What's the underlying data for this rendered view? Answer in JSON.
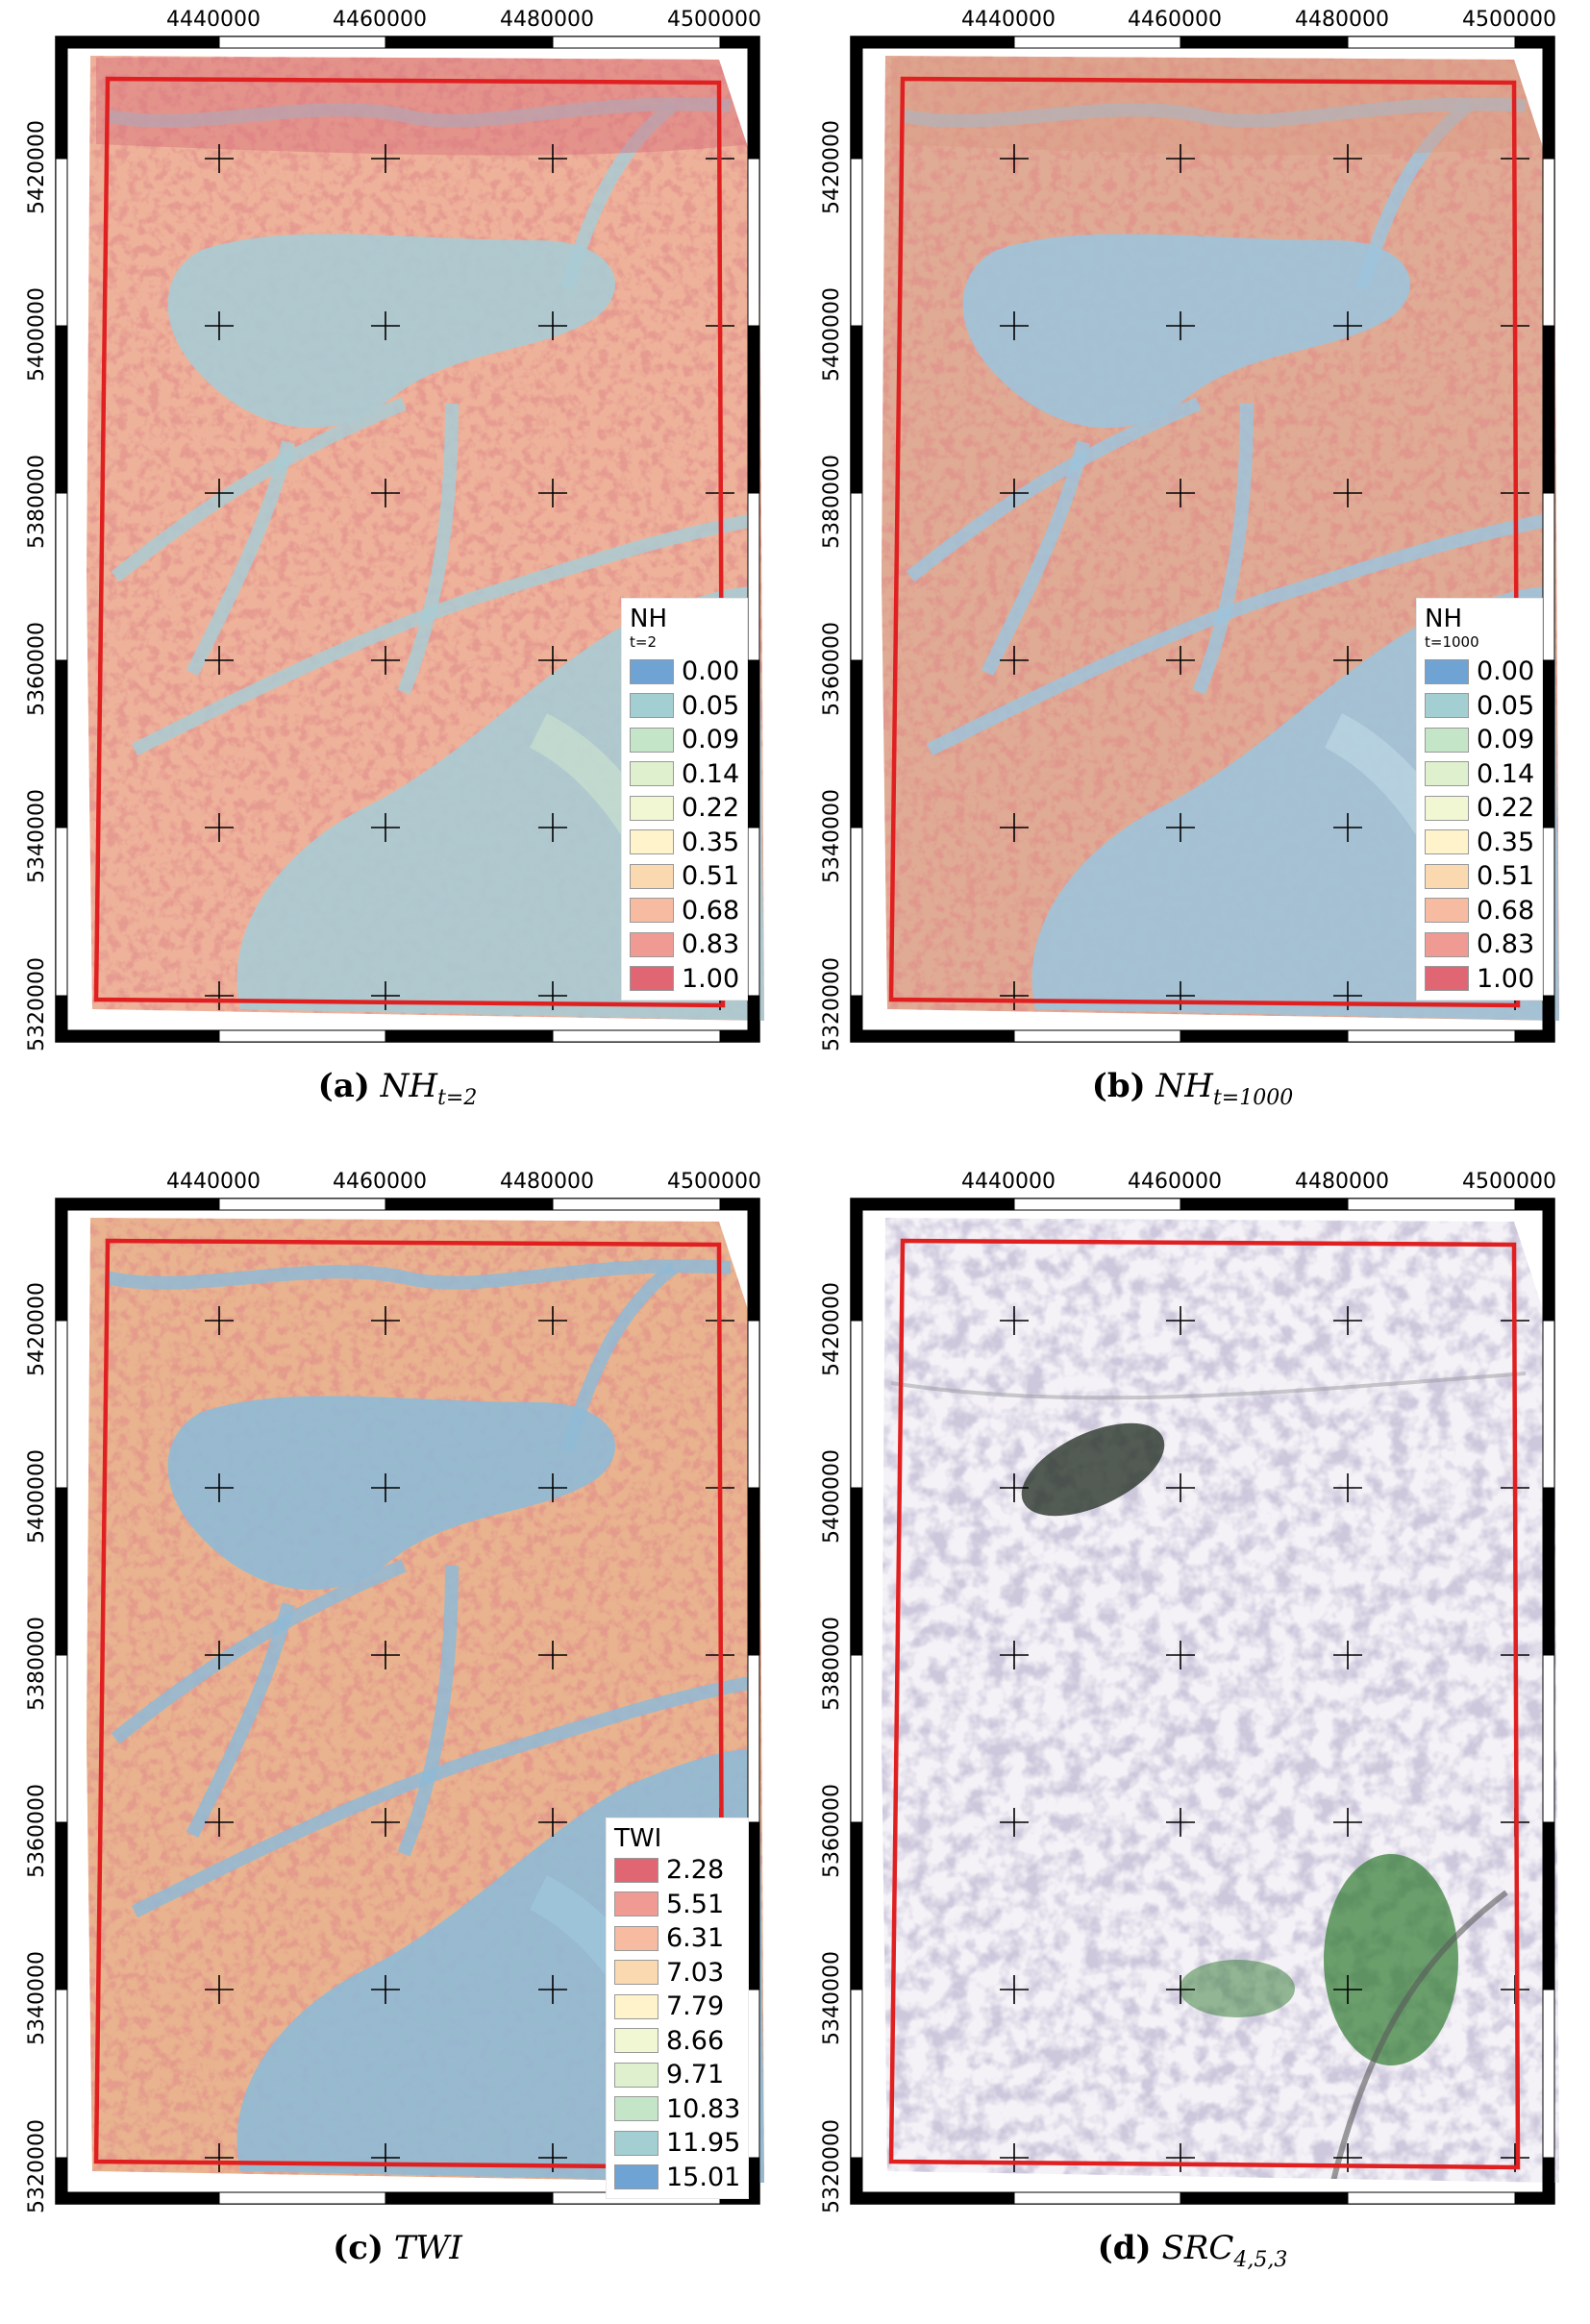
{
  "axes": {
    "x_ticks": [
      "4440000",
      "4460000",
      "4480000",
      "4500000"
    ],
    "y_ticks": [
      "5420000",
      "5400000",
      "5380000",
      "5360000",
      "5340000",
      "5320000"
    ]
  },
  "panels": [
    {
      "id": "a",
      "caption_letter": "(a)",
      "caption_main": "NH",
      "caption_sub": "t=2",
      "legend": {
        "title": "NH",
        "subtitle": "t=2",
        "items": [
          {
            "value": "0.00",
            "color": "#6fa3d3"
          },
          {
            "value": "0.05",
            "color": "#a3cfd2"
          },
          {
            "value": "0.09",
            "color": "#c5e5c8"
          },
          {
            "value": "0.14",
            "color": "#dff0cf"
          },
          {
            "value": "0.22",
            "color": "#f2f7d3"
          },
          {
            "value": "0.35",
            "color": "#fff3cc"
          },
          {
            "value": "0.51",
            "color": "#fbd9b0"
          },
          {
            "value": "0.68",
            "color": "#f6bba0"
          },
          {
            "value": "0.83",
            "color": "#ef9b94"
          },
          {
            "value": "1.00",
            "color": "#e06674"
          }
        ]
      },
      "map_style": "nh2"
    },
    {
      "id": "b",
      "caption_letter": "(b)",
      "caption_main": "NH",
      "caption_sub": "t=1000",
      "legend": {
        "title": "NH",
        "subtitle": "t=1000",
        "items": [
          {
            "value": "0.00",
            "color": "#6fa3d3"
          },
          {
            "value": "0.05",
            "color": "#a3cfd2"
          },
          {
            "value": "0.09",
            "color": "#c5e5c8"
          },
          {
            "value": "0.14",
            "color": "#dff0cf"
          },
          {
            "value": "0.22",
            "color": "#f2f7d3"
          },
          {
            "value": "0.35",
            "color": "#fff3cc"
          },
          {
            "value": "0.51",
            "color": "#fbd9b0"
          },
          {
            "value": "0.68",
            "color": "#f6bba0"
          },
          {
            "value": "0.83",
            "color": "#ef9b94"
          },
          {
            "value": "1.00",
            "color": "#e06674"
          }
        ]
      },
      "map_style": "nh1000"
    },
    {
      "id": "c",
      "caption_letter": "(c)",
      "caption_main": "TWI",
      "caption_sub": "",
      "legend": {
        "title": "TWI",
        "subtitle": "",
        "items": [
          {
            "value": "2.28",
            "color": "#e06674"
          },
          {
            "value": "5.51",
            "color": "#ef9b94"
          },
          {
            "value": "6.31",
            "color": "#f6bba0"
          },
          {
            "value": "7.03",
            "color": "#fbd9b0"
          },
          {
            "value": "7.79",
            "color": "#fff3cc"
          },
          {
            "value": "8.66",
            "color": "#f2f7d3"
          },
          {
            "value": "9.71",
            "color": "#dff0cf"
          },
          {
            "value": "10.83",
            "color": "#c5e5c8"
          },
          {
            "value": "11.95",
            "color": "#a3cfd2"
          },
          {
            "value": "15.01",
            "color": "#6fa3d3"
          }
        ]
      },
      "map_style": "twi"
    },
    {
      "id": "d",
      "caption_letter": "(d)",
      "caption_main": "SRC",
      "caption_sub": "4,5,3",
      "legend": null,
      "map_style": "src"
    }
  ]
}
